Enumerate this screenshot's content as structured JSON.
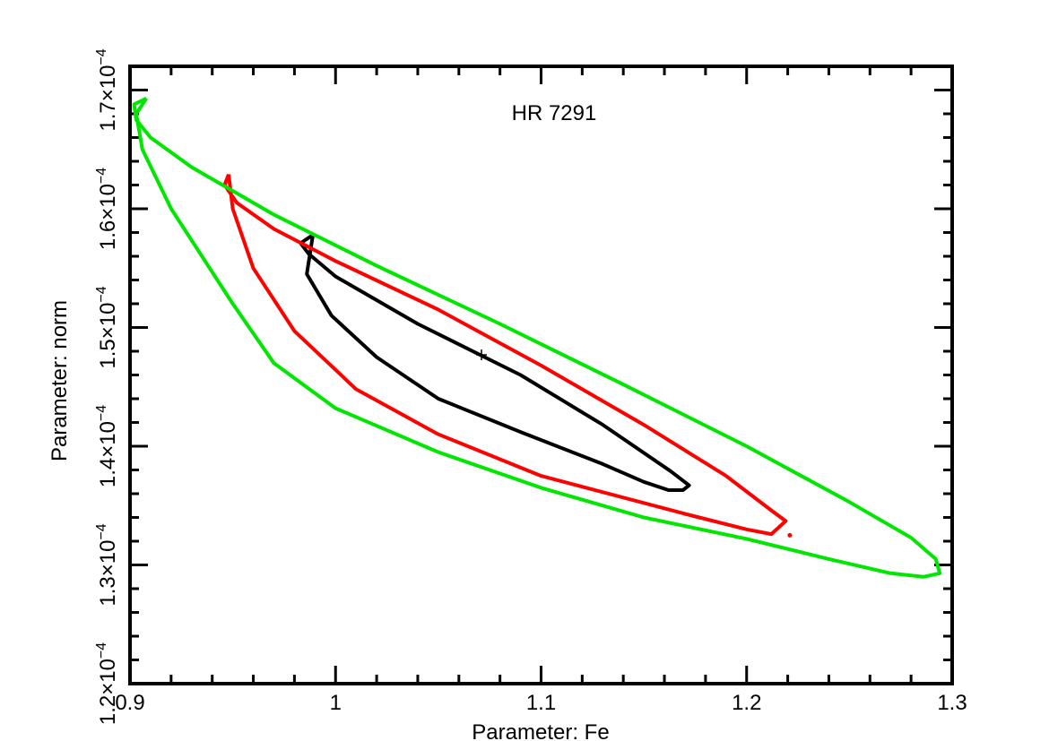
{
  "chart_data": {
    "type": "contour",
    "annotation": "HR 7291",
    "xlabel": "Parameter: Fe",
    "ylabel": "Parameter: norm",
    "xlim": [
      0.9,
      1.3
    ],
    "ylim": [
      0.00012,
      0.000172
    ],
    "x_ticks": [
      {
        "value": 0.9,
        "label": "0.9"
      },
      {
        "value": 1.0,
        "label": "1"
      },
      {
        "value": 1.1,
        "label": "1.1"
      },
      {
        "value": 1.2,
        "label": "1.2"
      },
      {
        "value": 1.3,
        "label": "1.3"
      }
    ],
    "y_ticks": [
      {
        "value": 0.00012,
        "mantissa": "1.2×10",
        "exponent": "−4"
      },
      {
        "value": 0.00013,
        "mantissa": "1.3×10",
        "exponent": "−4"
      },
      {
        "value": 0.00014,
        "mantissa": "1.4×10",
        "exponent": "−4"
      },
      {
        "value": 0.00015,
        "mantissa": "1.5×10",
        "exponent": "−4"
      },
      {
        "value": 0.00016,
        "mantissa": "1.6×10",
        "exponent": "−4"
      },
      {
        "value": 0.00017,
        "mantissa": "1.7×10",
        "exponent": "−4"
      }
    ],
    "best_fit": {
      "x": 1.071,
      "y": 0.0001477
    },
    "series": [
      {
        "color": "#000000",
        "points": [
          [
            0.989,
            0.0001578
          ],
          [
            0.983,
            0.0001571
          ],
          [
            0.987,
            0.0001562
          ],
          [
            1.0,
            0.0001543
          ],
          [
            1.04,
            0.0001503
          ],
          [
            1.09,
            0.000146
          ],
          [
            1.13,
            0.0001418
          ],
          [
            1.163,
            0.0001379
          ],
          [
            1.172,
            0.0001367
          ],
          [
            1.169,
            0.0001363
          ],
          [
            1.162,
            0.0001363
          ],
          [
            1.15,
            0.000137
          ],
          [
            1.13,
            0.0001385
          ],
          [
            1.09,
            0.0001412
          ],
          [
            1.05,
            0.000144
          ],
          [
            1.02,
            0.0001475
          ],
          [
            0.998,
            0.000151
          ],
          [
            0.986,
            0.0001545
          ],
          [
            0.989,
            0.0001578
          ]
        ]
      },
      {
        "color": "#ff0000",
        "points": [
          [
            0.948,
            0.0001629
          ],
          [
            0.946,
            0.000162
          ],
          [
            0.952,
            0.0001605
          ],
          [
            0.97,
            0.0001583
          ],
          [
            1.0,
            0.0001556
          ],
          [
            1.05,
            0.0001515
          ],
          [
            1.1,
            0.0001468
          ],
          [
            1.15,
            0.0001418
          ],
          [
            1.19,
            0.0001375
          ],
          [
            1.212,
            0.0001346
          ],
          [
            1.219,
            0.0001337
          ],
          [
            1.212,
            0.0001326
          ],
          [
            1.2,
            0.000133
          ],
          [
            1.17,
            0.0001343
          ],
          [
            1.1,
            0.0001375
          ],
          [
            1.05,
            0.000141
          ],
          [
            1.01,
            0.0001448
          ],
          [
            0.98,
            0.0001497
          ],
          [
            0.96,
            0.000155
          ],
          [
            0.95,
            0.00016
          ],
          [
            0.948,
            0.0001629
          ]
        ]
      },
      {
        "color": "#00e600",
        "points": [
          [
            0.908,
            0.0001693
          ],
          [
            0.902,
            0.0001688
          ],
          [
            0.903,
            0.0001675
          ],
          [
            0.91,
            0.000166
          ],
          [
            0.93,
            0.0001635
          ],
          [
            0.97,
            0.0001595
          ],
          [
            1.02,
            0.0001552
          ],
          [
            1.08,
            0.0001503
          ],
          [
            1.14,
            0.0001452
          ],
          [
            1.2,
            0.00014
          ],
          [
            1.25,
            0.0001353
          ],
          [
            1.28,
            0.0001323
          ],
          [
            1.292,
            0.0001305
          ],
          [
            1.294,
            0.0001293
          ],
          [
            1.286,
            0.000129
          ],
          [
            1.27,
            0.0001293
          ],
          [
            1.24,
            0.0001305
          ],
          [
            1.2,
            0.0001322
          ],
          [
            1.15,
            0.000134
          ],
          [
            1.1,
            0.0001365
          ],
          [
            1.05,
            0.0001395
          ],
          [
            1.0,
            0.0001432
          ],
          [
            0.97,
            0.000147
          ],
          [
            0.95,
            0.000152
          ],
          [
            0.92,
            0.00016
          ],
          [
            0.906,
            0.000165
          ],
          [
            0.903,
            0.000168
          ],
          [
            0.908,
            0.0001693
          ]
        ]
      }
    ],
    "stray_marks": [
      {
        "color": "#ff0000",
        "x": 1.221,
        "y": 0.0001325
      }
    ]
  }
}
